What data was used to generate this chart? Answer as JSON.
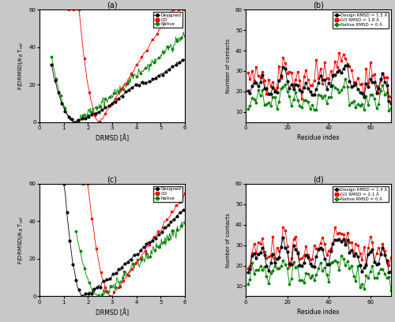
{
  "panel_a": {
    "title": "(a)",
    "xlabel": "DRMSD [Å]",
    "ylabel": "F(DRMSD)/kB T_ref",
    "xlim": [
      0,
      6
    ],
    "ylim": [
      0,
      60
    ],
    "xticks": [
      0,
      1,
      2,
      3,
      4,
      5,
      6
    ],
    "yticks": [
      0,
      20,
      40,
      60
    ],
    "legend": [
      "Designed",
      "GO",
      "Native"
    ],
    "colors": [
      "black",
      "red",
      "green"
    ]
  },
  "panel_b": {
    "title": "(b)",
    "xlabel": "Residue index",
    "ylabel": "Number of contacts",
    "xlim": [
      0,
      70
    ],
    "ylim": [
      5,
      60
    ],
    "xticks": [
      0,
      20,
      40,
      60
    ],
    "yticks": [
      10,
      20,
      30,
      40,
      50,
      60
    ],
    "legend": [
      "Design RMSD = 1.5 Å",
      "GO RMSD = 1.8 Å",
      "Native RMSD = 0 Å"
    ],
    "colors": [
      "black",
      "red",
      "green"
    ]
  },
  "panel_c": {
    "title": "(c)",
    "xlabel": "DRMSD [Å]",
    "ylabel": "F(DRMSD)/kB T_ref",
    "xlim": [
      0,
      6
    ],
    "ylim": [
      0,
      60
    ],
    "xticks": [
      0,
      1,
      2,
      3,
      4,
      5,
      6
    ],
    "yticks": [
      0,
      20,
      40,
      60
    ],
    "legend": [
      "Designed",
      "GO",
      "Native"
    ],
    "colors": [
      "black",
      "red",
      "green"
    ]
  },
  "panel_d": {
    "title": "(d)",
    "xlabel": "Residue index",
    "ylabel": "Number of contacts",
    "xlim": [
      0,
      70
    ],
    "ylim": [
      5,
      60
    ],
    "xticks": [
      0,
      20,
      40,
      60
    ],
    "yticks": [
      10,
      20,
      30,
      40,
      50,
      60
    ],
    "legend": [
      "Design RMSD = 1.4 Å",
      "GO RMSD = 2.1 Å",
      "Native RMSD = 0 Å"
    ],
    "colors": [
      "black",
      "red",
      "green"
    ]
  },
  "fig_background": "#c8c8c8"
}
